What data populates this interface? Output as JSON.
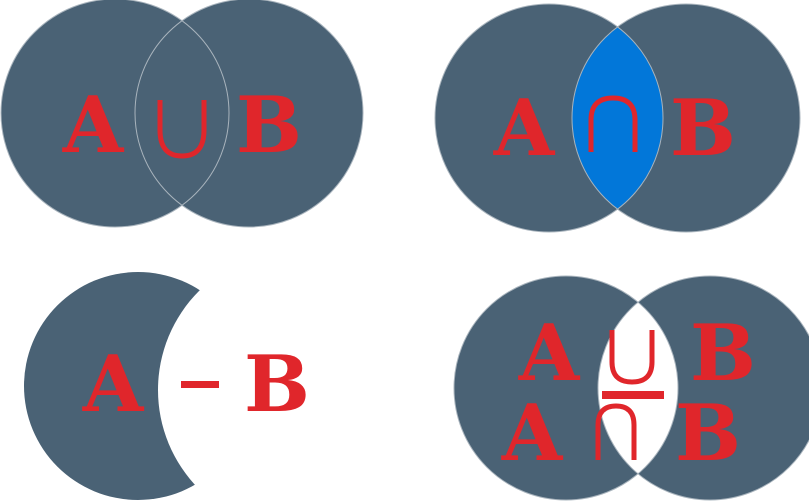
{
  "colors": {
    "circle": "#4a6275",
    "outline": "#a9b4bd",
    "highlight": "#0277d9",
    "red": "#e0262b",
    "background": "#ffffff"
  },
  "panels": {
    "union": {
      "left_letter": "A",
      "right_letter": "B",
      "operator": "union-symbol",
      "region": "both circles filled"
    },
    "intersection": {
      "left_letter": "A",
      "right_letter": "B",
      "operator": "intersection-symbol",
      "region": "overlap highlighted"
    },
    "difference": {
      "left_letter": "A",
      "right_letter": "B",
      "operator": "minus-sign",
      "region": "A without B"
    },
    "symmetric_difference": {
      "top_left_letter": "A",
      "top_right_letter": "B",
      "bottom_left_letter": "A",
      "bottom_right_letter": "B",
      "operator": "union-over-intersection-symbol",
      "region": "overlap removed"
    }
  }
}
